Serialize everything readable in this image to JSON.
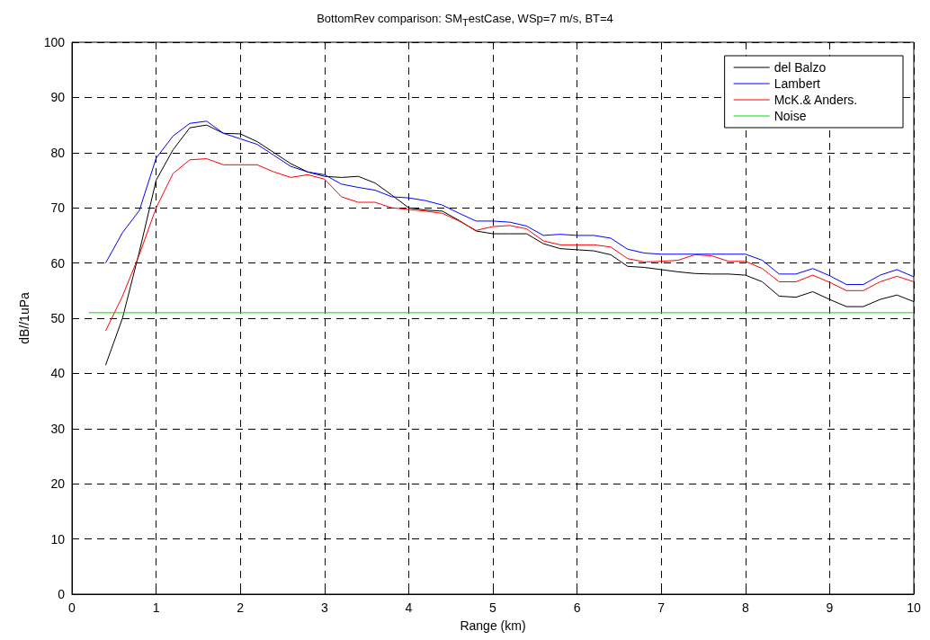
{
  "chart_data": {
    "type": "line",
    "title": "BottomRev comparison: SM$_{T}$estCase, WSp=7 m/s, BT=4",
    "xlabel": "Range (km)",
    "ylabel": "dB//1uPa",
    "x": [
      0.4,
      0.6,
      0.8,
      1.0,
      1.2,
      1.4,
      1.6,
      1.8,
      2.0,
      2.2,
      2.4,
      2.6,
      2.8,
      3.0,
      3.2,
      3.4,
      3.6,
      3.8,
      4.0,
      4.2,
      4.4,
      4.6,
      4.8,
      5.0,
      5.2,
      5.4,
      5.6,
      5.8,
      6.0,
      6.2,
      6.4,
      6.6,
      6.8,
      7.0,
      7.2,
      7.4,
      7.6,
      7.8,
      8.0,
      8.2,
      8.4,
      8.6,
      8.8,
      9.0,
      9.2,
      9.4,
      9.6,
      9.8,
      10.0
    ],
    "series": [
      {
        "name": "del Balzo",
        "color": "#000000",
        "values": [
          41.5,
          50,
          62,
          75,
          80.5,
          84.5,
          85,
          83.5,
          83.4,
          82,
          80,
          78,
          76.5,
          75.7,
          75.5,
          75.7,
          74.5,
          72.3,
          70,
          69.6,
          69.4,
          67.7,
          65.8,
          65.3,
          65.3,
          65.3,
          63.5,
          62.6,
          62.4,
          62.2,
          61.5,
          59.4,
          59.2,
          58.8,
          58.4,
          58.1,
          58,
          58,
          57.8,
          56.6,
          54,
          53.8,
          54.8,
          53.4,
          52.1,
          52.1,
          53.4,
          54.2,
          53
        ]
      },
      {
        "name": "Lambert",
        "color": "#0000ff",
        "values": [
          60,
          65.5,
          69.5,
          79,
          83,
          85.3,
          85.7,
          83.5,
          82.5,
          81.5,
          79.5,
          77.5,
          76.5,
          76,
          74.3,
          73.7,
          73.2,
          72,
          71.8,
          71.3,
          70.5,
          69,
          67.6,
          67.6,
          67.4,
          66.7,
          65,
          65.2,
          65,
          65,
          64.5,
          62.5,
          61.8,
          61.6,
          61.6,
          61.6,
          61.6,
          61.6,
          61.6,
          60.5,
          58,
          58,
          59,
          57.7,
          56.1,
          56.1,
          57.8,
          58.8,
          57.5
        ]
      },
      {
        "name": "McK.& Anders.",
        "color": "#ff0000",
        "values": [
          47.7,
          54,
          61.5,
          70,
          76.2,
          78.7,
          78.9,
          77.8,
          77.8,
          77.8,
          76.5,
          75.5,
          76,
          75.2,
          72,
          71,
          71,
          70,
          69.7,
          69.4,
          69,
          67.6,
          65.9,
          66.6,
          66.8,
          66.2,
          64,
          63.3,
          63.3,
          63.3,
          62.9,
          60.8,
          60.2,
          60.3,
          60.5,
          61.5,
          61.3,
          60.3,
          60.3,
          59,
          56.6,
          56.6,
          57.8,
          56.5,
          55,
          55,
          56.6,
          57.6,
          56.6
        ]
      },
      {
        "name": "Noise",
        "color": "#00dd00",
        "x": [
          0.2,
          10
        ],
        "values": [
          51,
          51
        ]
      }
    ],
    "xlim": [
      0,
      10
    ],
    "xticks": [
      0,
      1,
      2,
      3,
      4,
      5,
      6,
      7,
      8,
      9,
      10
    ],
    "ylim": [
      0,
      100
    ],
    "yticks": [
      0,
      10,
      20,
      30,
      40,
      50,
      60,
      70,
      80,
      90,
      100
    ],
    "grid": true,
    "legend": "top right",
    "marker": "none",
    "line_style": "solid"
  }
}
